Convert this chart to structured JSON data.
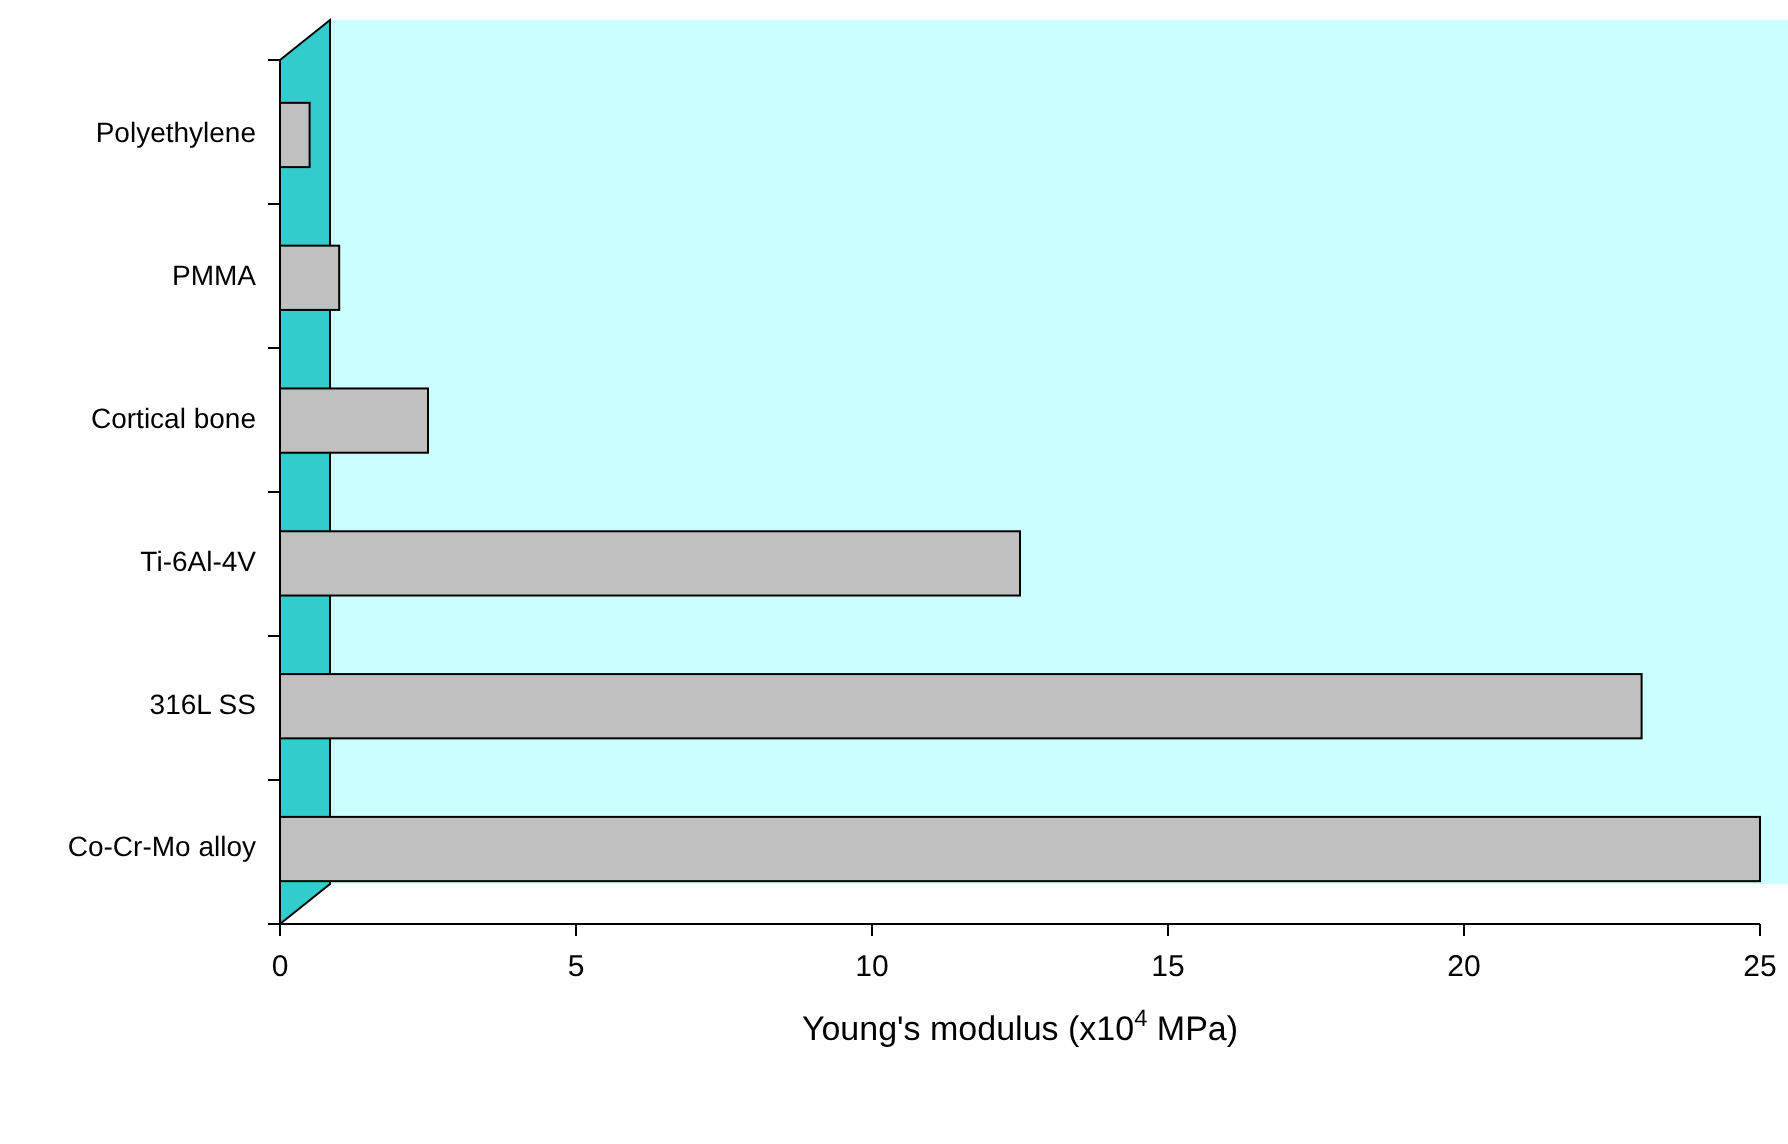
{
  "chart_data": {
    "type": "bar",
    "orientation": "horizontal",
    "xlabel": "Young's modulus (x10$^{4}$ MPa)",
    "categories": [
      "Polyethylene",
      "PMMA",
      "Cortical bone",
      "Ti-6Al-4V",
      "316L SS",
      "Co-Cr-Mo alloy"
    ],
    "values": [
      0.5,
      1,
      2.5,
      12.5,
      23,
      25
    ],
    "color": "#c0c0c0",
    "xlim": [
      0,
      25
    ],
    "xticks": [
      0,
      5,
      10,
      15,
      20,
      25
    ]
  }
}
